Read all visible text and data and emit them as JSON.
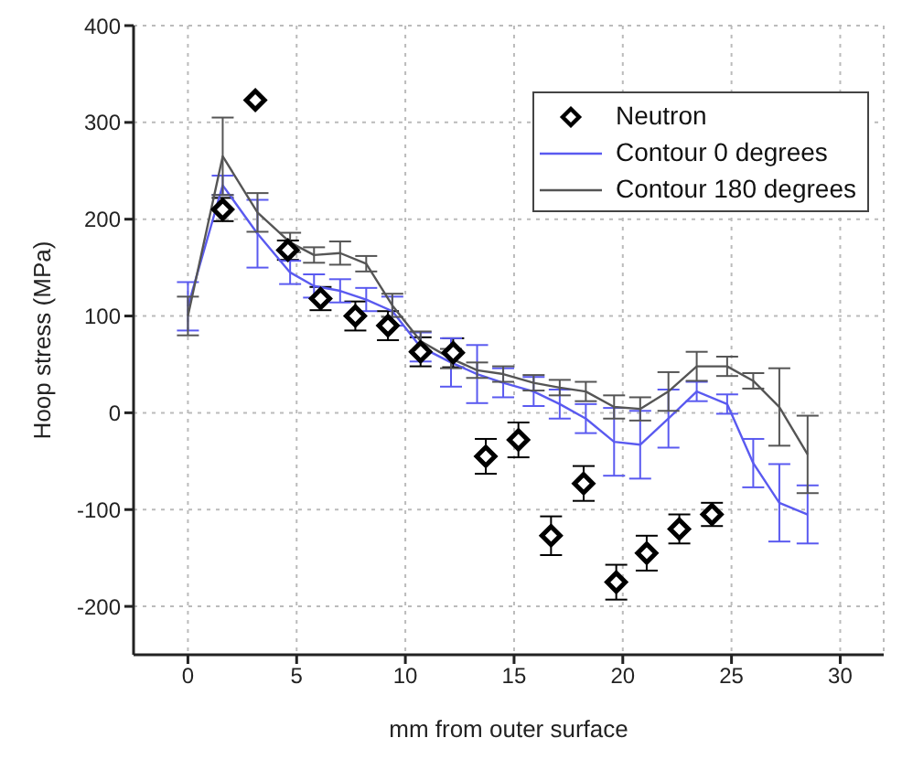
{
  "chart_data": {
    "type": "line",
    "xlabel": "mm from outer surface",
    "ylabel": "Hoop stress (MPa)",
    "xlim": [
      -2.5,
      32
    ],
    "ylim": [
      -250,
      400
    ],
    "xticks": [
      0,
      5,
      10,
      15,
      20,
      25,
      30
    ],
    "yticks": [
      -200,
      -100,
      0,
      100,
      200,
      300,
      400
    ],
    "grid": true,
    "legend": "top right",
    "series": [
      {
        "name": "Neutron",
        "type": "scatter",
        "marker": "diamond",
        "color": "#000000",
        "x": [
          1.6,
          3.1,
          4.6,
          6.1,
          7.7,
          9.2,
          10.7,
          12.2,
          13.7,
          15.2,
          16.7,
          18.2,
          19.7,
          21.1,
          22.6,
          24.1
        ],
        "values": [
          210,
          323,
          168,
          118,
          100,
          90,
          63,
          62,
          -45,
          -28,
          -127,
          -73,
          -175,
          -145,
          -120,
          -105
        ],
        "errors": [
          12,
          null,
          10,
          12,
          15,
          15,
          15,
          15,
          18,
          18,
          20,
          18,
          18,
          18,
          15,
          12
        ]
      },
      {
        "name": "Contour 0 degrees",
        "color": "#5a5af0",
        "x": [
          0,
          1.6,
          3.2,
          4.7,
          5.8,
          7.0,
          8.2,
          9.4,
          10.7,
          12.1,
          13.3,
          14.5,
          15.9,
          17.1,
          18.3,
          19.6,
          20.8,
          22.1,
          23.4,
          24.8,
          26.0,
          27.2,
          28.5
        ],
        "values": [
          110,
          235,
          185,
          145,
          131,
          126,
          117,
          105,
          68,
          52,
          40,
          31,
          22,
          9,
          -6,
          -30,
          -33,
          -6,
          22,
          9,
          -52,
          -93,
          -105
        ],
        "errors": [
          25,
          10,
          35,
          12,
          12,
          12,
          12,
          15,
          15,
          25,
          30,
          15,
          15,
          15,
          15,
          35,
          35,
          30,
          10,
          10,
          25,
          40,
          30
        ]
      },
      {
        "name": "Contour 180 degrees",
        "color": "#555555",
        "x": [
          0,
          1.6,
          3.2,
          4.7,
          5.8,
          7.0,
          8.2,
          9.4,
          10.7,
          12.1,
          13.3,
          14.5,
          15.9,
          17.1,
          18.3,
          19.6,
          20.8,
          22.1,
          23.4,
          24.8,
          26.0,
          27.2,
          28.5
        ],
        "values": [
          100,
          265,
          207,
          176,
          163,
          165,
          154,
          111,
          74,
          56,
          44,
          40,
          31,
          26,
          22,
          6,
          4,
          22,
          48,
          48,
          33,
          6,
          -43
        ],
        "errors": [
          20,
          40,
          20,
          10,
          8,
          12,
          8,
          12,
          10,
          10,
          8,
          8,
          8,
          8,
          10,
          12,
          12,
          20,
          15,
          10,
          8,
          40,
          40
        ]
      }
    ]
  }
}
